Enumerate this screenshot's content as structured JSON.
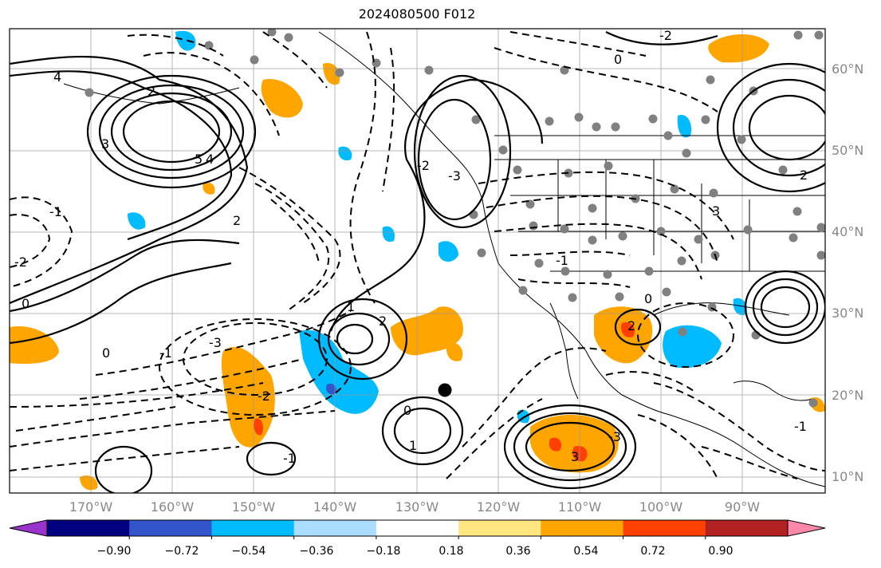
{
  "title": "2024080500 F012",
  "lat_labels": [
    "60°N",
    "50°N",
    "40°N",
    "30°N",
    "20°N",
    "10°N"
  ],
  "lon_labels": [
    "170°W",
    "160°W",
    "150°W",
    "140°W",
    "130°W",
    "120°W",
    "110°W",
    "100°W",
    "90°W"
  ],
  "colorbar": {
    "ticks": [
      "−0.90",
      "−0.72",
      "−0.54",
      "−0.36",
      "−0.18",
      "0.18",
      "0.36",
      "0.54",
      "0.72",
      "0.90"
    ],
    "colors": [
      "#9933cc",
      "#000080",
      "#3355cc",
      "#00bbff",
      "#aaddff",
      "#ffffff",
      "#ffe680",
      "#ffa500",
      "#ff4000",
      "#b22222",
      "#ff88aa"
    ]
  },
  "contour_labels": [
    {
      "text": "2"
    },
    {
      "text": "4"
    },
    {
      "text": "3"
    },
    {
      "text": "5"
    },
    {
      "text": "4"
    },
    {
      "text": "-1"
    },
    {
      "text": "-2"
    },
    {
      "text": "-3"
    },
    {
      "text": "0"
    },
    {
      "text": "1"
    },
    {
      "text": "2"
    },
    {
      "text": "-2"
    },
    {
      "text": "-3"
    },
    {
      "text": "-2"
    },
    {
      "text": "1"
    },
    {
      "text": "0"
    },
    {
      "text": "-1"
    },
    {
      "text": "3"
    },
    {
      "text": "-3"
    },
    {
      "text": "-1"
    },
    {
      "text": "0"
    },
    {
      "text": "2"
    },
    {
      "text": "3"
    },
    {
      "text": "-1"
    },
    {
      "text": "0"
    },
    {
      "text": "-2"
    },
    {
      "text": "2"
    },
    {
      "text": "-1"
    },
    {
      "text": "2"
    },
    {
      "text": "0"
    }
  ]
}
